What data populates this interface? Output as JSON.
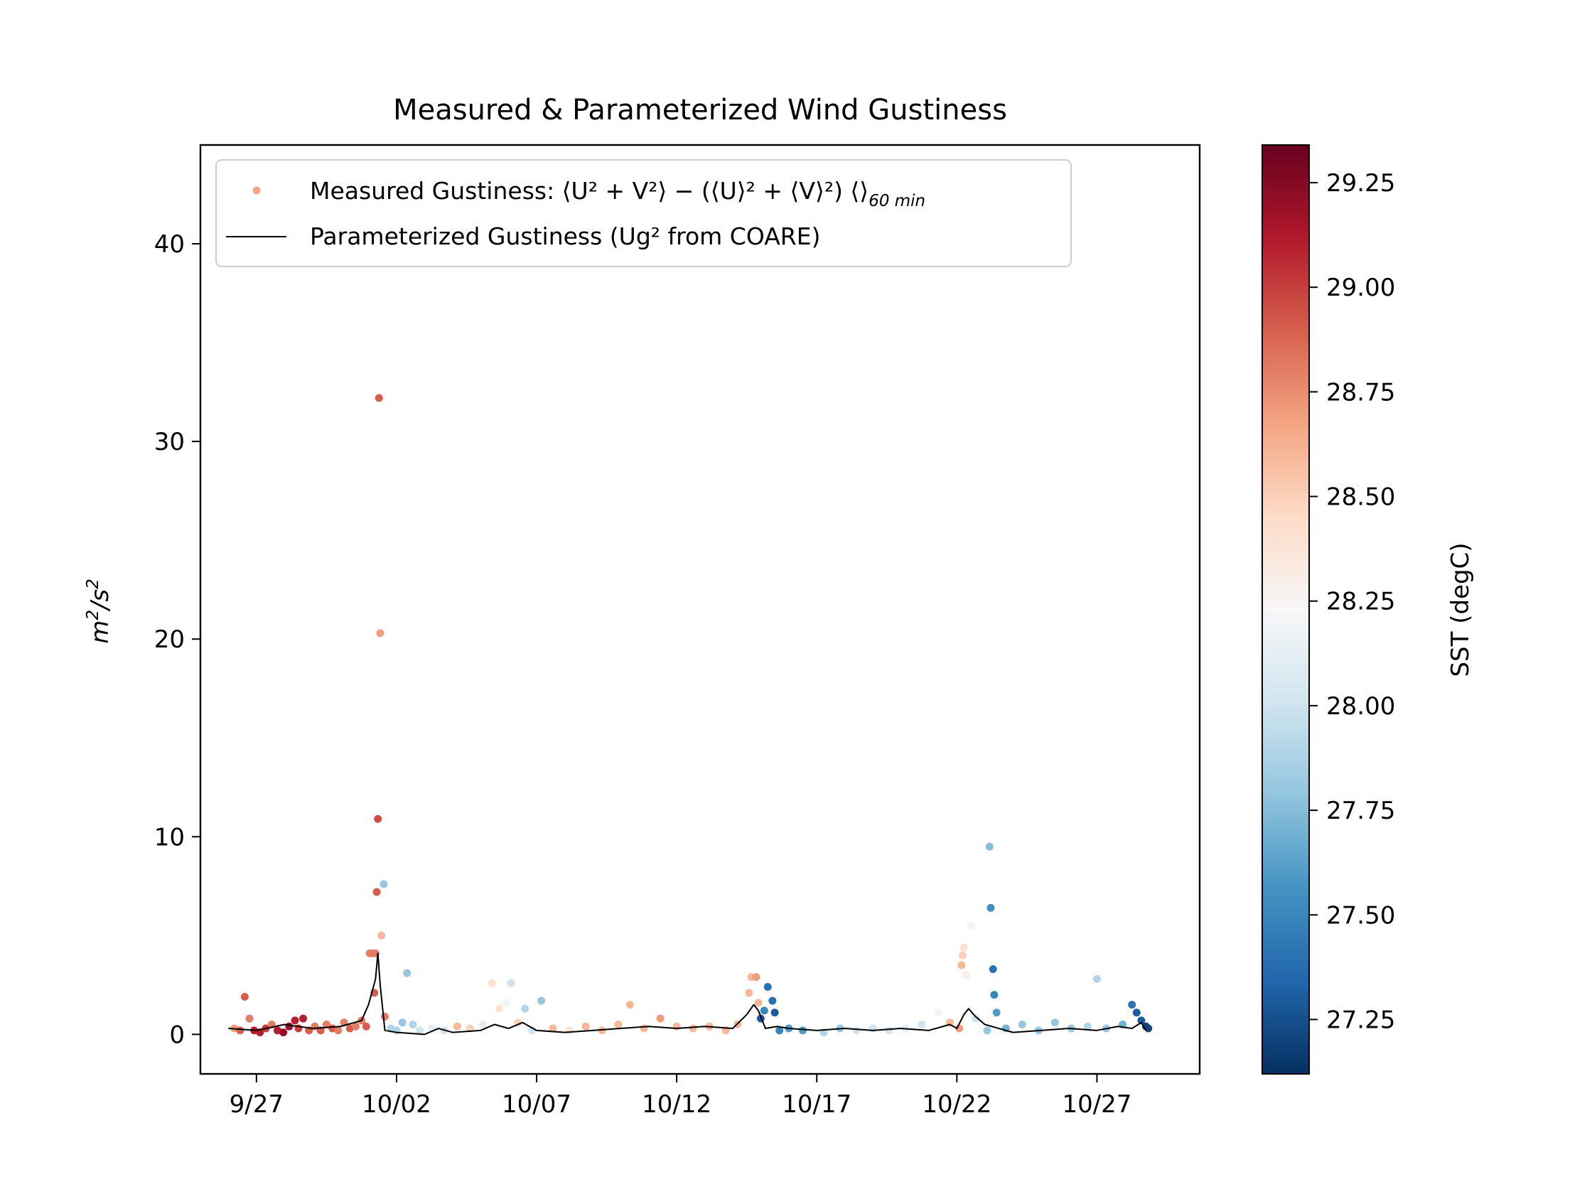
{
  "chart_data": {
    "type": "scatter",
    "title": "Measured & Parameterized Wind Gustiness",
    "ylabel_base": "m²/s²",
    "ylim": [
      -2,
      45
    ],
    "xlim": [
      "2023-09-25T00:00",
      "2023-10-30T16:00"
    ],
    "xtick_values": [
      "2023-09-27",
      "2023-10-02",
      "2023-10-07",
      "2023-10-12",
      "2023-10-17",
      "2023-10-22",
      "2023-10-27"
    ],
    "xtick_labels": [
      "9/27",
      "10/02",
      "10/07",
      "10/12",
      "10/17",
      "10/22",
      "10/27"
    ],
    "yticks": [
      0,
      10,
      20,
      30,
      40
    ],
    "grid": false,
    "legend": {
      "placement": "upper-left",
      "measured_label": "Measured Gustiness: ⟨U² + V²⟩ − (⟨U⟩² + ⟨V⟩²) ⟨⟩",
      "measured_subscript": "60 min",
      "parameterized_label": "Parameterized Gustiness (Ug² from COARE)",
      "measured_color": "#f4a582",
      "parameterized_color": "#000000"
    },
    "colorbar": {
      "label": "SST (degC)",
      "range": [
        27.12,
        29.34
      ],
      "ticks": [
        27.25,
        27.5,
        27.75,
        28.0,
        28.25,
        28.5,
        28.75,
        29.0,
        29.25
      ],
      "tick_labels": [
        "27.25",
        "27.50",
        "27.75",
        "28.00",
        "28.25",
        "28.50",
        "28.75",
        "29.00",
        "29.25"
      ],
      "colormap": [
        "#053061",
        "#2166ac",
        "#4393c3",
        "#92c5de",
        "#d1e5f0",
        "#f7f7f7",
        "#fddbc7",
        "#f4a582",
        "#d6604d",
        "#b2182b",
        "#67001f"
      ]
    },
    "series": [
      {
        "type": "scatter",
        "color_variable": "SST (degC)",
        "points": [
          {
            "x": "2023-09-26T05:00",
            "y": 0.3,
            "c": 28.7
          },
          {
            "x": "2023-09-26T10:00",
            "y": 0.2,
            "c": 28.9
          },
          {
            "x": "2023-09-26T14:00",
            "y": 1.9,
            "c": 28.9
          },
          {
            "x": "2023-09-26T18:00",
            "y": 0.8,
            "c": 28.8
          },
          {
            "x": "2023-09-26T22:00",
            "y": 0.2,
            "c": 29.1
          },
          {
            "x": "2023-09-27T03:00",
            "y": 0.1,
            "c": 29.1
          },
          {
            "x": "2023-09-27T08:00",
            "y": 0.3,
            "c": 29.0
          },
          {
            "x": "2023-09-27T13:00",
            "y": 0.5,
            "c": 28.8
          },
          {
            "x": "2023-09-27T18:00",
            "y": 0.2,
            "c": 29.1
          },
          {
            "x": "2023-09-27T23:00",
            "y": 0.1,
            "c": 29.2
          },
          {
            "x": "2023-09-28T04:00",
            "y": 0.4,
            "c": 29.2
          },
          {
            "x": "2023-09-28T09:00",
            "y": 0.7,
            "c": 29.1
          },
          {
            "x": "2023-09-28T12:00",
            "y": 0.3,
            "c": 29.0
          },
          {
            "x": "2023-09-28T16:00",
            "y": 0.8,
            "c": 29.1
          },
          {
            "x": "2023-09-28T21:00",
            "y": 0.2,
            "c": 28.9
          },
          {
            "x": "2023-09-29T02:00",
            "y": 0.4,
            "c": 28.8
          },
          {
            "x": "2023-09-29T07:00",
            "y": 0.2,
            "c": 28.9
          },
          {
            "x": "2023-09-29T12:00",
            "y": 0.5,
            "c": 28.8
          },
          {
            "x": "2023-09-29T17:00",
            "y": 0.3,
            "c": 28.9
          },
          {
            "x": "2023-09-29T22:00",
            "y": 0.2,
            "c": 28.8
          },
          {
            "x": "2023-09-30T03:00",
            "y": 0.6,
            "c": 28.8
          },
          {
            "x": "2023-09-30T08:00",
            "y": 0.3,
            "c": 28.9
          },
          {
            "x": "2023-09-30T13:00",
            "y": 0.4,
            "c": 28.8
          },
          {
            "x": "2023-09-30T18:00",
            "y": 0.7,
            "c": 28.8
          },
          {
            "x": "2023-09-30T22:00",
            "y": 0.4,
            "c": 28.9
          },
          {
            "x": "2023-10-01T01:00",
            "y": 4.1,
            "c": 28.8
          },
          {
            "x": "2023-10-01T03:00",
            "y": 4.1,
            "c": 28.8
          },
          {
            "x": "2023-10-01T05:00",
            "y": 2.1,
            "c": 28.9
          },
          {
            "x": "2023-10-01T06:00",
            "y": 4.1,
            "c": 28.8
          },
          {
            "x": "2023-10-01T07:00",
            "y": 7.2,
            "c": 28.9
          },
          {
            "x": "2023-10-01T08:00",
            "y": 10.9,
            "c": 28.95
          },
          {
            "x": "2023-10-01T09:00",
            "y": 32.2,
            "c": 28.9
          },
          {
            "x": "2023-10-01T10:00",
            "y": 20.3,
            "c": 28.7
          },
          {
            "x": "2023-10-01T11:00",
            "y": 5.0,
            "c": 28.6
          },
          {
            "x": "2023-10-01T13:00",
            "y": 7.6,
            "c": 27.8
          },
          {
            "x": "2023-10-01T14:00",
            "y": 0.9,
            "c": 28.8
          },
          {
            "x": "2023-10-01T19:00",
            "y": 0.3,
            "c": 27.9
          },
          {
            "x": "2023-10-02T00:00",
            "y": 0.2,
            "c": 27.9
          },
          {
            "x": "2023-10-02T05:00",
            "y": 0.6,
            "c": 27.8
          },
          {
            "x": "2023-10-02T09:00",
            "y": 3.1,
            "c": 27.8
          },
          {
            "x": "2023-10-02T14:00",
            "y": 0.5,
            "c": 27.9
          },
          {
            "x": "2023-10-02T20:00",
            "y": 0.2,
            "c": 28.0
          },
          {
            "x": "2023-10-03T06:00",
            "y": 0.3,
            "c": 28.1
          },
          {
            "x": "2023-10-03T17:00",
            "y": 0.2,
            "c": 28.0
          },
          {
            "x": "2023-10-04T04:00",
            "y": 0.4,
            "c": 28.6
          },
          {
            "x": "2023-10-04T15:00",
            "y": 0.3,
            "c": 28.5
          },
          {
            "x": "2023-10-05T02:00",
            "y": 0.5,
            "c": 28.1
          },
          {
            "x": "2023-10-05T10:00",
            "y": 2.6,
            "c": 28.4
          },
          {
            "x": "2023-10-05T16:00",
            "y": 1.3,
            "c": 28.4
          },
          {
            "x": "2023-10-05T22:00",
            "y": 1.6,
            "c": 28.2
          },
          {
            "x": "2023-10-06T02:00",
            "y": 2.6,
            "c": 28.0
          },
          {
            "x": "2023-10-06T08:00",
            "y": 0.6,
            "c": 28.5
          },
          {
            "x": "2023-10-06T14:00",
            "y": 1.3,
            "c": 27.9
          },
          {
            "x": "2023-10-06T20:00",
            "y": 0.2,
            "c": 28.0
          },
          {
            "x": "2023-10-07T04:00",
            "y": 1.7,
            "c": 27.8
          },
          {
            "x": "2023-10-07T14:00",
            "y": 0.3,
            "c": 28.6
          },
          {
            "x": "2023-10-08T04:00",
            "y": 0.2,
            "c": 28.4
          },
          {
            "x": "2023-10-08T18:00",
            "y": 0.4,
            "c": 28.6
          },
          {
            "x": "2023-10-09T08:00",
            "y": 0.2,
            "c": 28.6
          },
          {
            "x": "2023-10-09T22:00",
            "y": 0.5,
            "c": 28.6
          },
          {
            "x": "2023-10-10T08:00",
            "y": 1.5,
            "c": 28.6
          },
          {
            "x": "2023-10-10T20:00",
            "y": 0.3,
            "c": 28.6
          },
          {
            "x": "2023-10-11T10:00",
            "y": 0.8,
            "c": 28.7
          },
          {
            "x": "2023-10-12T00:00",
            "y": 0.4,
            "c": 28.6
          },
          {
            "x": "2023-10-12T14:00",
            "y": 0.3,
            "c": 28.6
          },
          {
            "x": "2023-10-13T04:00",
            "y": 0.4,
            "c": 28.6
          },
          {
            "x": "2023-10-13T18:00",
            "y": 0.2,
            "c": 28.6
          },
          {
            "x": "2023-10-14T04:00",
            "y": 0.5,
            "c": 28.6
          },
          {
            "x": "2023-10-14T14:00",
            "y": 2.1,
            "c": 28.6
          },
          {
            "x": "2023-10-14T16:00",
            "y": 2.9,
            "c": 28.6
          },
          {
            "x": "2023-10-14T20:00",
            "y": 2.9,
            "c": 28.7
          },
          {
            "x": "2023-10-14T22:00",
            "y": 1.6,
            "c": 28.6
          },
          {
            "x": "2023-10-15T00:00",
            "y": 0.8,
            "c": 27.3
          },
          {
            "x": "2023-10-15T03:00",
            "y": 1.2,
            "c": 27.5
          },
          {
            "x": "2023-10-15T06:00",
            "y": 2.4,
            "c": 27.4
          },
          {
            "x": "2023-10-15T10:00",
            "y": 1.7,
            "c": 27.4
          },
          {
            "x": "2023-10-15T12:00",
            "y": 1.1,
            "c": 27.3
          },
          {
            "x": "2023-10-15T16:00",
            "y": 0.2,
            "c": 27.5
          },
          {
            "x": "2023-10-16T00:00",
            "y": 0.3,
            "c": 27.6
          },
          {
            "x": "2023-10-16T12:00",
            "y": 0.2,
            "c": 27.6
          },
          {
            "x": "2023-10-17T06:00",
            "y": 0.1,
            "c": 27.9
          },
          {
            "x": "2023-10-17T20:00",
            "y": 0.3,
            "c": 27.8
          },
          {
            "x": "2023-10-18T10:00",
            "y": 0.2,
            "c": 28.0
          },
          {
            "x": "2023-10-19T00:00",
            "y": 0.3,
            "c": 28.0
          },
          {
            "x": "2023-10-19T14:00",
            "y": 0.2,
            "c": 28.0
          },
          {
            "x": "2023-10-20T04:00",
            "y": 0.3,
            "c": 28.1
          },
          {
            "x": "2023-10-20T18:00",
            "y": 0.5,
            "c": 28.0
          },
          {
            "x": "2023-10-21T08:00",
            "y": 1.1,
            "c": 28.2
          },
          {
            "x": "2023-10-21T18:00",
            "y": 0.6,
            "c": 28.6
          },
          {
            "x": "2023-10-22T02:00",
            "y": 0.3,
            "c": 28.7
          },
          {
            "x": "2023-10-22T04:00",
            "y": 3.5,
            "c": 28.6
          },
          {
            "x": "2023-10-22T05:00",
            "y": 4.0,
            "c": 28.5
          },
          {
            "x": "2023-10-22T06:00",
            "y": 4.4,
            "c": 28.4
          },
          {
            "x": "2023-10-22T08:00",
            "y": 3.0,
            "c": 28.3
          },
          {
            "x": "2023-10-22T12:00",
            "y": 5.5,
            "c": 28.2
          },
          {
            "x": "2023-10-22T16:00",
            "y": 0.8,
            "c": 28.0
          },
          {
            "x": "2023-10-23T02:00",
            "y": 0.2,
            "c": 27.8
          },
          {
            "x": "2023-10-23T04:00",
            "y": 9.5,
            "c": 27.75
          },
          {
            "x": "2023-10-23T05:00",
            "y": 6.4,
            "c": 27.55
          },
          {
            "x": "2023-10-23T07:00",
            "y": 3.3,
            "c": 27.4
          },
          {
            "x": "2023-10-23T08:00",
            "y": 2.0,
            "c": 27.5
          },
          {
            "x": "2023-10-23T10:00",
            "y": 1.1,
            "c": 27.6
          },
          {
            "x": "2023-10-23T18:00",
            "y": 0.3,
            "c": 27.7
          },
          {
            "x": "2023-10-24T08:00",
            "y": 0.5,
            "c": 27.8
          },
          {
            "x": "2023-10-24T22:00",
            "y": 0.2,
            "c": 27.8
          },
          {
            "x": "2023-10-25T12:00",
            "y": 0.6,
            "c": 27.8
          },
          {
            "x": "2023-10-26T02:00",
            "y": 0.3,
            "c": 27.8
          },
          {
            "x": "2023-10-26T16:00",
            "y": 0.4,
            "c": 27.9
          },
          {
            "x": "2023-10-27T00:00",
            "y": 2.8,
            "c": 27.9
          },
          {
            "x": "2023-10-27T08:00",
            "y": 0.3,
            "c": 27.8
          },
          {
            "x": "2023-10-27T22:00",
            "y": 0.5,
            "c": 27.7
          },
          {
            "x": "2023-10-28T06:00",
            "y": 1.5,
            "c": 27.4
          },
          {
            "x": "2023-10-28T10:00",
            "y": 1.1,
            "c": 27.3
          },
          {
            "x": "2023-10-28T14:00",
            "y": 0.7,
            "c": 27.3
          },
          {
            "x": "2023-10-28T18:00",
            "y": 0.4,
            "c": 27.2
          },
          {
            "x": "2023-10-28T20:00",
            "y": 0.3,
            "c": 27.2
          }
        ]
      },
      {
        "name": "Parameterized Gustiness",
        "type": "line",
        "color": "#000000",
        "points": [
          {
            "x": "2023-09-26T00:00",
            "y": 0.3
          },
          {
            "x": "2023-09-27T00:00",
            "y": 0.2
          },
          {
            "x": "2023-09-28T00:00",
            "y": 0.5
          },
          {
            "x": "2023-09-29T00:00",
            "y": 0.3
          },
          {
            "x": "2023-09-30T00:00",
            "y": 0.4
          },
          {
            "x": "2023-09-30T18:00",
            "y": 0.7
          },
          {
            "x": "2023-10-01T00:00",
            "y": 1.5
          },
          {
            "x": "2023-10-01T06:00",
            "y": 2.8
          },
          {
            "x": "2023-10-01T08:00",
            "y": 4.1
          },
          {
            "x": "2023-10-01T10:00",
            "y": 2.5
          },
          {
            "x": "2023-10-01T14:00",
            "y": 0.2
          },
          {
            "x": "2023-10-02T00:00",
            "y": 0.1
          },
          {
            "x": "2023-10-03T00:00",
            "y": 0.0
          },
          {
            "x": "2023-10-03T12:00",
            "y": 0.3
          },
          {
            "x": "2023-10-04T00:00",
            "y": 0.1
          },
          {
            "x": "2023-10-05T00:00",
            "y": 0.2
          },
          {
            "x": "2023-10-05T12:00",
            "y": 0.5
          },
          {
            "x": "2023-10-06T00:00",
            "y": 0.3
          },
          {
            "x": "2023-10-06T12:00",
            "y": 0.6
          },
          {
            "x": "2023-10-07T00:00",
            "y": 0.2
          },
          {
            "x": "2023-10-08T00:00",
            "y": 0.1
          },
          {
            "x": "2023-10-09T00:00",
            "y": 0.2
          },
          {
            "x": "2023-10-10T00:00",
            "y": 0.3
          },
          {
            "x": "2023-10-11T00:00",
            "y": 0.4
          },
          {
            "x": "2023-10-12T00:00",
            "y": 0.3
          },
          {
            "x": "2023-10-13T00:00",
            "y": 0.4
          },
          {
            "x": "2023-10-14T00:00",
            "y": 0.3
          },
          {
            "x": "2023-10-14T12:00",
            "y": 1.0
          },
          {
            "x": "2023-10-14T18:00",
            "y": 1.5
          },
          {
            "x": "2023-10-14T22:00",
            "y": 1.2
          },
          {
            "x": "2023-10-15T04:00",
            "y": 0.3
          },
          {
            "x": "2023-10-15T14:00",
            "y": 0.4
          },
          {
            "x": "2023-10-16T00:00",
            "y": 0.3
          },
          {
            "x": "2023-10-17T00:00",
            "y": 0.2
          },
          {
            "x": "2023-10-18T00:00",
            "y": 0.3
          },
          {
            "x": "2023-10-19T00:00",
            "y": 0.2
          },
          {
            "x": "2023-10-20T00:00",
            "y": 0.3
          },
          {
            "x": "2023-10-21T00:00",
            "y": 0.2
          },
          {
            "x": "2023-10-21T18:00",
            "y": 0.5
          },
          {
            "x": "2023-10-22T00:00",
            "y": 0.3
          },
          {
            "x": "2023-10-22T06:00",
            "y": 1.0
          },
          {
            "x": "2023-10-22T10:00",
            "y": 1.3
          },
          {
            "x": "2023-10-22T16:00",
            "y": 0.9
          },
          {
            "x": "2023-10-23T00:00",
            "y": 0.5
          },
          {
            "x": "2023-10-23T12:00",
            "y": 0.3
          },
          {
            "x": "2023-10-24T00:00",
            "y": 0.1
          },
          {
            "x": "2023-10-25T00:00",
            "y": 0.2
          },
          {
            "x": "2023-10-26T00:00",
            "y": 0.3
          },
          {
            "x": "2023-10-27T00:00",
            "y": 0.2
          },
          {
            "x": "2023-10-27T18:00",
            "y": 0.4
          },
          {
            "x": "2023-10-28T06:00",
            "y": 0.3
          },
          {
            "x": "2023-10-28T14:00",
            "y": 0.6
          },
          {
            "x": "2023-10-28T18:00",
            "y": 0.2
          }
        ]
      }
    ]
  }
}
